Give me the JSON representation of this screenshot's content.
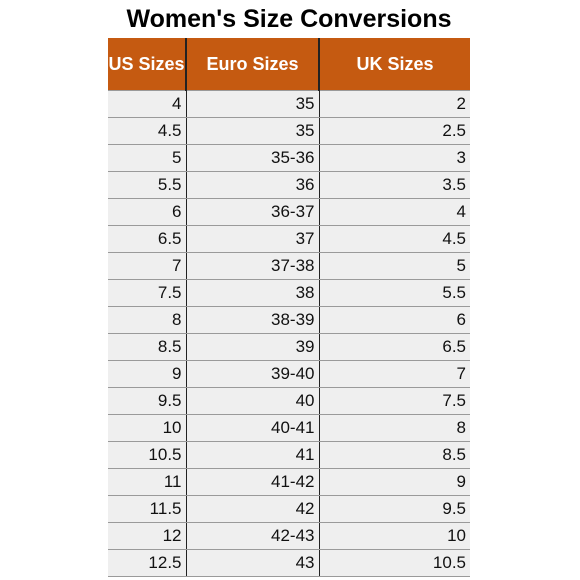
{
  "title": "Women's Size Conversions",
  "accent_color": "#c55a11",
  "headers": [
    "US Sizes",
    "Euro Sizes",
    "UK Sizes"
  ],
  "rows": [
    [
      "4",
      "35",
      "2"
    ],
    [
      "4.5",
      "35",
      "2.5"
    ],
    [
      "5",
      "35-36",
      "3"
    ],
    [
      "5.5",
      "36",
      "3.5"
    ],
    [
      "6",
      "36-37",
      "4"
    ],
    [
      "6.5",
      "37",
      "4.5"
    ],
    [
      "7",
      "37-38",
      "5"
    ],
    [
      "7.5",
      "38",
      "5.5"
    ],
    [
      "8",
      "38-39",
      "6"
    ],
    [
      "8.5",
      "39",
      "6.5"
    ],
    [
      "9",
      "39-40",
      "7"
    ],
    [
      "9.5",
      "40",
      "7.5"
    ],
    [
      "10",
      "40-41",
      "8"
    ],
    [
      "10.5",
      "41",
      "8.5"
    ],
    [
      "11",
      "41-42",
      "9"
    ],
    [
      "11.5",
      "42",
      "9.5"
    ],
    [
      "12",
      "42-43",
      "10"
    ],
    [
      "12.5",
      "43",
      "10.5"
    ]
  ]
}
